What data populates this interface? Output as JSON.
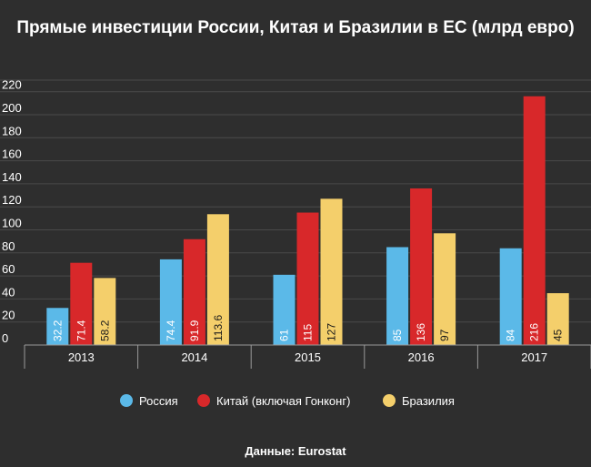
{
  "chart_data": {
    "type": "bar",
    "title": "Прямые инвестиции России, Китая и Бразилии в ЕС (млрд евро)",
    "xlabel": "",
    "ylabel": "",
    "ylim": [
      0,
      230
    ],
    "yticks": [
      0,
      20,
      40,
      60,
      80,
      100,
      120,
      140,
      160,
      180,
      200,
      220
    ],
    "yticklabels": [
      "0",
      "20",
      "40",
      "60",
      "80",
      "100",
      "120",
      "140",
      "160",
      "180",
      "200",
      "220"
    ],
    "top_tick_label": "220",
    "categories": [
      "2013",
      "2014",
      "2015",
      "2016",
      "2017"
    ],
    "series": [
      {
        "name": "Россия",
        "color": "#5bb9e8",
        "values": [
          32.2,
          74.4,
          61,
          85,
          84
        ],
        "labels": [
          "32.2",
          "74.4",
          "61",
          "85",
          "84"
        ]
      },
      {
        "name": "Китай (включая Гонконг)",
        "color": "#d8282a",
        "values": [
          71.4,
          91.9,
          115,
          136,
          216
        ],
        "labels": [
          "71.4",
          "91.9",
          "115",
          "136",
          "216"
        ]
      },
      {
        "name": "Бразилия",
        "color": "#f4cf6b",
        "values": [
          58.2,
          113.6,
          127,
          97,
          45
        ],
        "labels": [
          "58.2",
          "113.6",
          "127",
          "97",
          "45"
        ]
      }
    ],
    "legend": "bottom-center",
    "grid": true
  },
  "source": "Данные: Eurostat"
}
